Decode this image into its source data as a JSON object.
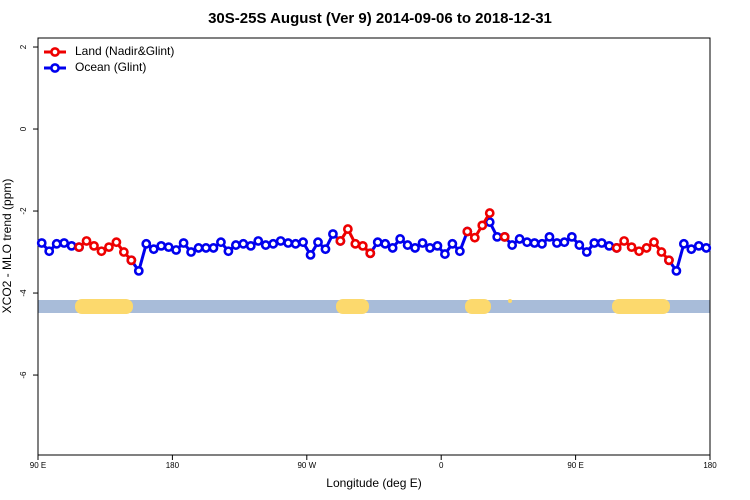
{
  "chart_data": {
    "type": "line",
    "title": "30S-25S August (Ver 9)   2014-09-06 to 2018-12-31",
    "x_label": "Longitude (deg E)",
    "y_label": "XCO2 - MLO trend (ppm)",
    "xlim": [
      90,
      540
    ],
    "ylim": [
      -7.95,
      2.22
    ],
    "xticks": [
      {
        "value": 90,
        "label": "90 E"
      },
      180,
      {
        "value": 270,
        "label": "90 W"
      },
      {
        "value": 360,
        "label": "0"
      },
      {
        "value": 450,
        "label": "90 E"
      },
      {
        "value": 540,
        "label": "180"
      }
    ],
    "yticks": [
      -6,
      -4,
      -2,
      0,
      2
    ],
    "legend": "top-left",
    "x": [
      92.5,
      97.5,
      102.5,
      107.5,
      112.5,
      117.5,
      122.5,
      127.5,
      132.5,
      137.5,
      142.5,
      147.5,
      152.5,
      157.5,
      162.5,
      167.5,
      172.5,
      177.5,
      182.5,
      187.5,
      192.5,
      197.5,
      202.5,
      207.5,
      212.5,
      217.5,
      222.5,
      227.5,
      232.5,
      237.5,
      242.5,
      247.5,
      252.5,
      257.5,
      262.5,
      267.5,
      272.5,
      277.5,
      282.5,
      287.5,
      292.5,
      297.5,
      302.5,
      307.5,
      312.5,
      317.5,
      322.5,
      327.5,
      332.5,
      337.5,
      342.5,
      347.5,
      352.5,
      357.5,
      362.5,
      367.5,
      372.5,
      377.5,
      382.5,
      387.5,
      392.5,
      397.5,
      402.5,
      407.5,
      412.5,
      417.5,
      422.5,
      427.5,
      432.5,
      437.5,
      442.5,
      447.5,
      452.5,
      457.5,
      462.5,
      467.5,
      472.5,
      477.5,
      482.5,
      487.5,
      492.5,
      497.5,
      502.5,
      507.5,
      512.5,
      517.5,
      522.5,
      527.5,
      532.5,
      537.5
    ],
    "series": [
      {
        "name": "Ocean (Glint)",
        "color": "#0000ee",
        "values": [
          -2.78,
          -2.98,
          -2.8,
          -2.78,
          -2.85,
          -2.88,
          null,
          null,
          null,
          null,
          null,
          null,
          -3.2,
          -3.46,
          -2.8,
          -2.93,
          -2.85,
          -2.88,
          -2.95,
          -2.78,
          -3.0,
          -2.9,
          -2.9,
          -2.9,
          -2.76,
          -2.98,
          -2.83,
          -2.8,
          -2.85,
          -2.73,
          -2.83,
          -2.8,
          -2.73,
          -2.78,
          -2.8,
          -2.76,
          -3.07,
          -2.76,
          -2.93,
          -2.56,
          -2.73,
          null,
          null,
          null,
          -3.03,
          -2.76,
          -2.8,
          -2.9,
          -2.68,
          -2.83,
          -2.9,
          -2.78,
          -2.9,
          -2.85,
          -3.05,
          -2.8,
          -2.98,
          -2.5,
          null,
          null,
          -2.27,
          -2.63,
          -2.63,
          -2.83,
          -2.68,
          -2.76,
          -2.78,
          -2.8,
          -2.63,
          -2.78,
          -2.76,
          -2.63,
          -2.83,
          -3.0,
          -2.78,
          -2.78,
          -2.85,
          -2.9,
          null,
          null,
          null,
          null,
          null,
          null,
          -3.2,
          -3.46,
          -2.8,
          -2.93,
          -2.85,
          -2.9
        ]
      },
      {
        "name": "Land (Nadir&Glint)",
        "color": "#ee0000",
        "values": [
          null,
          null,
          null,
          null,
          null,
          -2.88,
          -2.73,
          -2.85,
          -2.98,
          -2.88,
          -2.76,
          -3.0,
          -3.2,
          null,
          null,
          null,
          null,
          null,
          null,
          null,
          null,
          null,
          null,
          null,
          null,
          null,
          null,
          null,
          null,
          null,
          null,
          null,
          null,
          null,
          null,
          null,
          null,
          null,
          null,
          null,
          -2.73,
          -2.44,
          -2.8,
          -2.85,
          -3.03,
          null,
          null,
          null,
          null,
          null,
          null,
          null,
          null,
          null,
          null,
          null,
          null,
          -2.5,
          -2.65,
          -2.35,
          -2.05,
          null,
          -2.63,
          null,
          null,
          null,
          null,
          null,
          null,
          null,
          null,
          null,
          null,
          null,
          null,
          null,
          null,
          -2.9,
          -2.73,
          -2.88,
          -2.98,
          -2.9,
          -2.76,
          -3.0,
          -3.2,
          null,
          null,
          null,
          null,
          null
        ]
      }
    ]
  }
}
